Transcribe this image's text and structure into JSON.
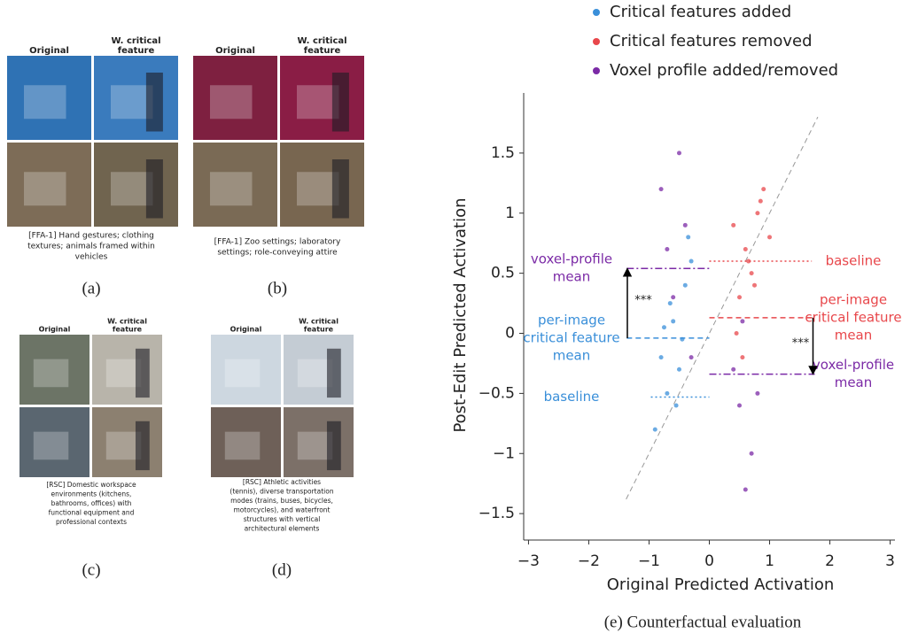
{
  "panels": [
    {
      "label": "(a)",
      "headers": [
        [
          "Original"
        ],
        [
          "W. critical",
          "feature"
        ]
      ],
      "caption": [
        "[FFA-1] Hand gestures; clothing",
        "textures; animals framed within",
        "vehicles"
      ]
    },
    {
      "label": "(b)",
      "headers": [
        [
          "Original"
        ],
        [
          "W. critical",
          "feature"
        ]
      ],
      "caption": [
        "[FFA-1] Zoo settings; laboratory",
        "settings; role-conveying attire"
      ]
    },
    {
      "label": "(c)",
      "headers": [
        [
          "Original"
        ],
        [
          "W. critical",
          "feature"
        ]
      ],
      "caption": [
        "[RSC] Domestic workspace",
        "environments (kitchens,",
        "bathrooms, offices) with",
        "functional equipment and",
        "professional contexts"
      ]
    },
    {
      "label": "(d)",
      "headers": [
        [
          "Original"
        ],
        [
          "W. critical",
          "feature"
        ]
      ],
      "caption": [
        "[RSC] Athletic activities",
        "(tennis), diverse transportation",
        "modes (trains, buses, bicycles,",
        "motorcycles), and waterfront",
        "structures with vertical",
        "architectural elements"
      ]
    }
  ],
  "chart": {
    "type": "scatter",
    "caption": "(e) Counterfactual evaluation",
    "xlabel": "Original Predicted Activation",
    "ylabel": "Post-Edit Predicted Activation",
    "xlim": [
      -3.08,
      3.08
    ],
    "ylim": [
      -1.72,
      2.0
    ],
    "xticks": [
      {
        "value": -3,
        "label": "−3"
      },
      {
        "value": -2,
        "label": "−2"
      },
      {
        "value": -1,
        "label": "−1"
      },
      0,
      1,
      2,
      3
    ],
    "yticks": [
      {
        "value": -1.5,
        "label": "−1.5"
      },
      {
        "value": -1,
        "label": "−1"
      },
      {
        "value": -0.5,
        "label": "−0.5"
      },
      0,
      0.5,
      1,
      1.5
    ],
    "series": [
      {
        "name": "Critical features added",
        "color": "#3a8fd9",
        "x": [
          -0.9,
          -0.7,
          -0.5,
          -0.6,
          -0.4,
          -0.8,
          -0.3,
          -0.55,
          -0.65,
          -0.45,
          -0.75,
          -0.35
        ],
        "values": [
          -0.8,
          -0.5,
          -0.3,
          0.1,
          0.4,
          -0.2,
          0.6,
          -0.6,
          0.25,
          -0.05,
          0.05,
          0.8
        ]
      },
      {
        "name": "Critical features removed",
        "color": "#e8474b",
        "x": [
          0.4,
          0.6,
          0.8,
          0.5,
          0.7,
          0.9,
          0.45,
          0.65,
          1.0,
          0.55,
          0.75,
          0.85
        ],
        "values": [
          0.9,
          0.7,
          1.0,
          0.3,
          0.5,
          1.2,
          0.0,
          0.6,
          0.8,
          -0.2,
          0.4,
          1.1
        ]
      },
      {
        "name": "Voxel profile added/removed",
        "color": "#7b2aa6",
        "x": [
          -0.8,
          -0.5,
          -0.4,
          -0.6,
          -0.3,
          -0.7,
          0.5,
          0.7,
          0.4,
          0.6,
          0.8,
          0.55
        ],
        "values": [
          1.2,
          1.5,
          0.9,
          0.3,
          -0.2,
          0.7,
          -0.6,
          -1.0,
          -0.3,
          -1.3,
          -0.5,
          0.1
        ]
      }
    ],
    "diagonal": [
      -1.38,
      1.8
    ],
    "annotations": [
      {
        "text": [
          "voxel-profile",
          "mean"
        ],
        "color": "#7b2aa6",
        "y": 0.54,
        "x": [
          -1.37,
          0
        ],
        "style": "dashdot"
      },
      {
        "text": [
          "per-image",
          "critical feature",
          "mean"
        ],
        "color": "#3a8fd9",
        "y": -0.04,
        "x": [
          -1.37,
          0
        ],
        "style": "dashed"
      },
      {
        "text": [
          "baseline"
        ],
        "color": "#3a8fd9",
        "y": -0.53,
        "x": [
          -0.97,
          0
        ],
        "style": "dotted"
      },
      {
        "text": [
          "baseline"
        ],
        "color": "#e8474b",
        "y": 0.6,
        "x": [
          0,
          1.7
        ],
        "style": "dotted"
      },
      {
        "text": [
          "per-image",
          "critical feature",
          "mean"
        ],
        "color": "#e8474b",
        "y": 0.13,
        "x": [
          0,
          1.75
        ],
        "style": "dashed"
      },
      {
        "text": [
          "voxel-profile",
          "mean"
        ],
        "color": "#7b2aa6",
        "y": -0.34,
        "x": [
          0,
          1.75
        ],
        "style": "dashdot"
      }
    ],
    "arrows": [
      {
        "x": -1.36,
        "from": -0.04,
        "to": 0.54,
        "label": "***"
      },
      {
        "x": 1.72,
        "from": 0.13,
        "to": -0.34,
        "label": "***"
      }
    ]
  }
}
